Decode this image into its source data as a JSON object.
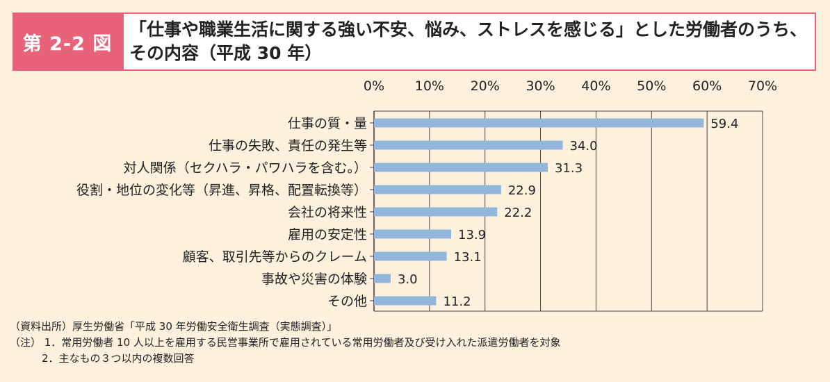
{
  "figure": {
    "label": "第 2-2 図",
    "title": "「仕事や職業生活に関する強い不安、悩み、ストレスを感じる」とした労働者のうち、その内容（平成 30 年）"
  },
  "chart_data": {
    "type": "bar",
    "orientation": "horizontal",
    "title": "「仕事や職業生活に関する強い不安、悩み、ストレスを感じる」とした労働者のうち、その内容（平成 30 年）",
    "xlabel": "",
    "ylabel": "",
    "xlim": [
      0,
      70
    ],
    "x_ticks": [
      "0%",
      "10%",
      "20%",
      "30%",
      "40%",
      "50%",
      "60%",
      "70%"
    ],
    "x_tick_values": [
      0,
      10,
      20,
      30,
      40,
      50,
      60,
      70
    ],
    "grid": true,
    "bar_color": "#93b6dc",
    "categories": [
      "仕事の質・量",
      "仕事の失敗、責任の発生等",
      "対人関係（セクハラ・パワハラを含む。）",
      "役割・地位の変化等（昇進、昇格、配置転換等）",
      "会社の将来性",
      "雇用の安定性",
      "顧客、取引先等からのクレーム",
      "事故や災害の体験",
      "その他"
    ],
    "values": [
      59.4,
      34.0,
      31.3,
      22.9,
      22.2,
      13.9,
      13.1,
      3.0,
      11.2
    ],
    "value_labels": [
      "59.4",
      "34.0",
      "31.3",
      "22.9",
      "22.2",
      "13.9",
      "13.1",
      "3.0",
      "11.2"
    ]
  },
  "notes": {
    "source": "（資料出所）厚生労働省「平成 30 年労働安全衛生調査（実態調査）」",
    "note1": "（注）  1．常用労働者 10 人以上を雇用する民営事業所で雇用されている常用労働者及び受け入れた派遣労働者を対象",
    "note2": "2．主なもの３つ以内の複数回答"
  },
  "colors": {
    "accent": "#e8627a",
    "background": "#fdf0dc",
    "bar": "#93b6dc"
  }
}
